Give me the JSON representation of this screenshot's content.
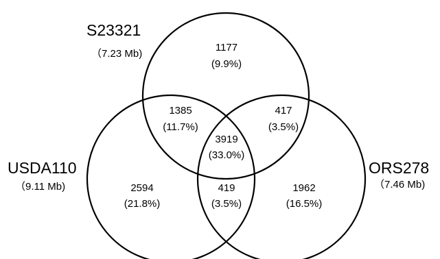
{
  "sets": [
    {
      "id": "top",
      "name": "S23321",
      "size": "（7.23 Mb)"
    },
    {
      "id": "left",
      "name": "USDA110",
      "size": "（9.11 Mb)"
    },
    {
      "id": "right",
      "name": "ORS278",
      "size": "（7.46 Mb)"
    }
  ],
  "regions": {
    "top_only": {
      "count": "1177",
      "pct": "(9.9%)"
    },
    "top_left": {
      "count": "1385",
      "pct": "(11.7%)"
    },
    "top_right": {
      "count": "417",
      "pct": "(3.5%)"
    },
    "all_three": {
      "count": "3919",
      "pct": "(33.0%)"
    },
    "left_only": {
      "count": "2594",
      "pct": "(21.8%)"
    },
    "left_right": {
      "count": "419",
      "pct": "(3.5%)"
    },
    "right_only": {
      "count": "1962",
      "pct": "(16.5%)"
    }
  },
  "colors": {
    "stroke": "#000000",
    "background": "#ffffff",
    "text": "#000000"
  }
}
